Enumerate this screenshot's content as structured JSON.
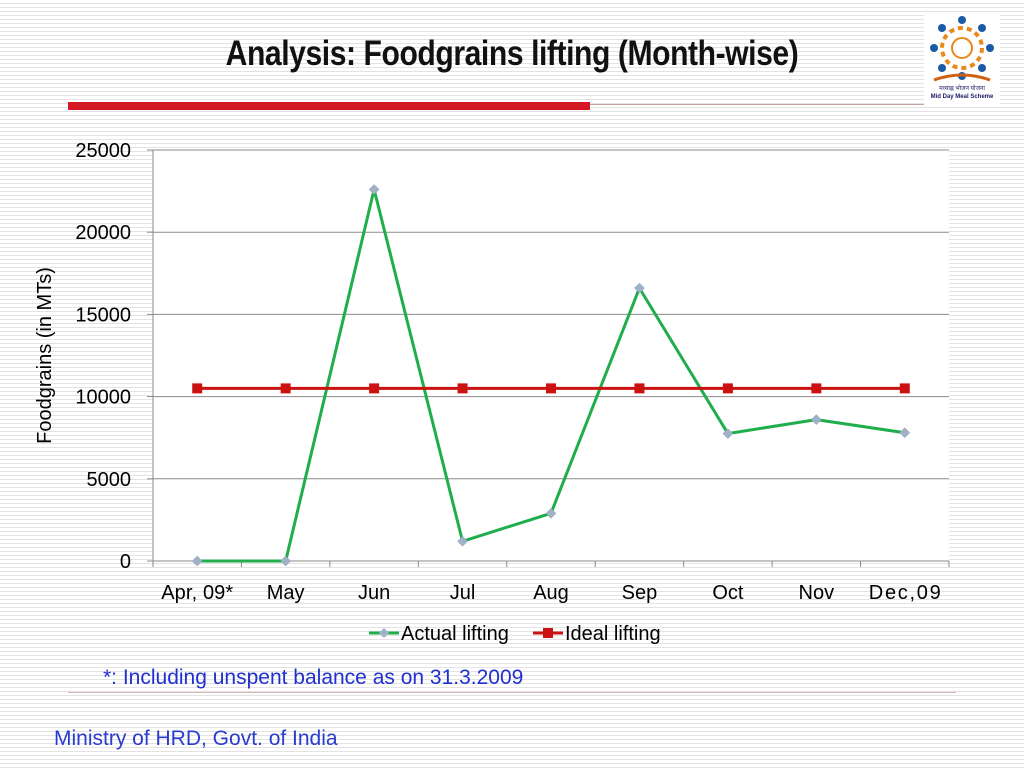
{
  "slide": {
    "title": "Analysis: Foodgrains lifting (Month-wise)",
    "logo_text_hindi": "मध्याह्न भोजन योजना",
    "logo_text_english": "Mid Day Meal Scheme",
    "footnote": "*: Including unspent balance  as on 31.3.2009",
    "footer": "Ministry of HRD, Govt. of India"
  },
  "colors": {
    "actual": "#1fae4b",
    "actual_marker": "#9fb2c8",
    "ideal": "#cc1111",
    "accent_red": "#d31a24",
    "footer_blue": "#2a3ccf"
  },
  "chart_data": {
    "type": "line",
    "title": "",
    "xlabel": "",
    "ylabel": "Foodgrains (in MTs)",
    "categories": [
      "Apr, 09*",
      "May",
      "Jun",
      "Jul",
      "Aug",
      "Sep",
      "Oct",
      "Nov",
      "Dec,09"
    ],
    "ylim": [
      0,
      25000
    ],
    "yticks": [
      0,
      5000,
      10000,
      15000,
      20000,
      25000
    ],
    "grid": true,
    "legend": "bottom",
    "series": [
      {
        "name": "Actual lifting",
        "marker": "diamond",
        "values": [
          0,
          0,
          22600,
          1200,
          2900,
          16600,
          7750,
          8600,
          7800
        ]
      },
      {
        "name": "Ideal lifting",
        "marker": "square",
        "values": [
          10500,
          10500,
          10500,
          10500,
          10500,
          10500,
          10500,
          10500,
          10500
        ]
      }
    ]
  }
}
